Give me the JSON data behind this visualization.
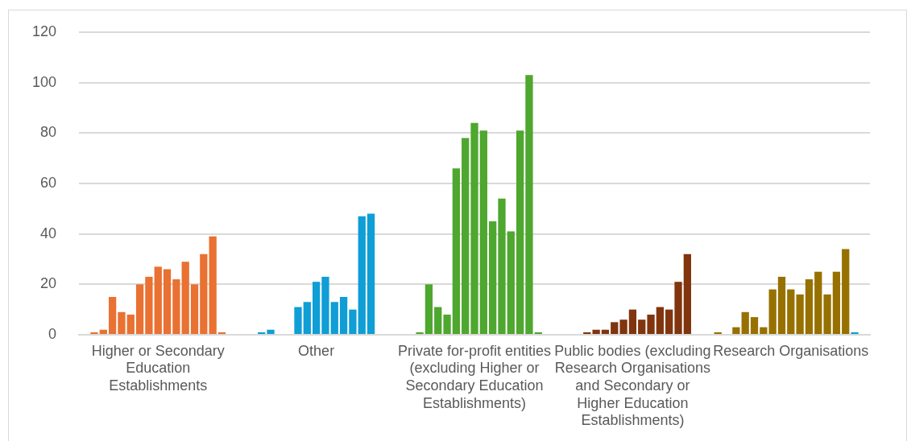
{
  "chart_data": {
    "type": "bar",
    "categories": [
      "Higher or Secondary Education Establishments",
      "Other",
      "Private for-profit entities (excluding Higher or Secondary Education Establishments)",
      "Public bodies (excluding Research Organisations and Secondary or Higher Education Establishments)",
      "Research Organisations"
    ],
    "series": [
      {
        "colors": [
          "#e97132",
          "#0f9ed5",
          "#4ea72e",
          "#80350e",
          "#977100"
        ],
        "values": [
          null,
          null,
          null,
          null,
          1
        ]
      },
      {
        "colors": [
          "#e97132",
          "#0f9ed5",
          "#4ea72e",
          "#80350e",
          "#977100"
        ],
        "values": [
          1,
          null,
          null,
          null,
          null
        ]
      },
      {
        "colors": [
          "#e97132",
          "#0f9ed5",
          "#4ea72e",
          "#80350e",
          "#977100"
        ],
        "values": [
          2,
          1,
          1,
          null,
          3
        ]
      },
      {
        "colors": [
          "#e97132",
          "#0f9ed5",
          "#4ea72e",
          "#80350e",
          "#977100"
        ],
        "values": [
          15,
          2,
          20,
          1,
          9
        ]
      },
      {
        "colors": [
          "#e97132",
          "#0f9ed5",
          "#4ea72e",
          "#80350e",
          "#977100"
        ],
        "values": [
          9,
          null,
          11,
          2,
          7
        ]
      },
      {
        "colors": [
          "#e97132",
          "#0f9ed5",
          "#4ea72e",
          "#80350e",
          "#977100"
        ],
        "values": [
          8,
          null,
          8,
          2,
          3
        ]
      },
      {
        "colors": [
          "#e97132",
          "#0f9ed5",
          "#4ea72e",
          "#80350e",
          "#977100"
        ],
        "values": [
          20,
          11,
          66,
          5,
          18
        ]
      },
      {
        "colors": [
          "#e97132",
          "#0f9ed5",
          "#4ea72e",
          "#80350e",
          "#977100"
        ],
        "values": [
          23,
          13,
          78,
          6,
          23
        ]
      },
      {
        "colors": [
          "#e97132",
          "#0f9ed5",
          "#4ea72e",
          "#80350e",
          "#977100"
        ],
        "values": [
          27,
          21,
          84,
          10,
          18
        ]
      },
      {
        "colors": [
          "#e97132",
          "#0f9ed5",
          "#4ea72e",
          "#80350e",
          "#977100"
        ],
        "values": [
          26,
          23,
          81,
          6,
          16
        ]
      },
      {
        "colors": [
          "#e97132",
          "#0f9ed5",
          "#4ea72e",
          "#80350e",
          "#977100"
        ],
        "values": [
          22,
          13,
          45,
          8,
          22
        ]
      },
      {
        "colors": [
          "#e97132",
          "#0f9ed5",
          "#4ea72e",
          "#80350e",
          "#977100"
        ],
        "values": [
          29,
          15,
          54,
          11,
          25
        ]
      },
      {
        "colors": [
          "#e97132",
          "#0f9ed5",
          "#4ea72e",
          "#80350e",
          "#977100"
        ],
        "values": [
          20,
          10,
          41,
          10,
          16
        ]
      },
      {
        "colors": [
          "#e97132",
          "#0f9ed5",
          "#4ea72e",
          "#80350e",
          "#977100"
        ],
        "values": [
          32,
          47,
          81,
          21,
          25
        ]
      },
      {
        "colors": [
          "#e97132",
          "#0f9ed5",
          "#4ea72e",
          "#80350e",
          "#977100"
        ],
        "values": [
          39,
          48,
          103,
          32,
          34
        ]
      },
      {
        "colors": [
          "#e97132",
          "#0f9ed5",
          "#4ea72e",
          "#80350e",
          "#0f9ed5"
        ],
        "values": [
          1,
          null,
          1,
          null,
          1
        ]
      },
      {
        "colors": [
          "#e97132",
          "#0f9ed5",
          "#4ea72e",
          "#80350e",
          "#977100"
        ],
        "values": [
          null,
          null,
          null,
          null,
          null
        ]
      }
    ],
    "ylim": [
      0,
      120
    ],
    "yticks": [
      0,
      20,
      40,
      60,
      80,
      100,
      120
    ],
    "grid": "y",
    "legend": false
  }
}
